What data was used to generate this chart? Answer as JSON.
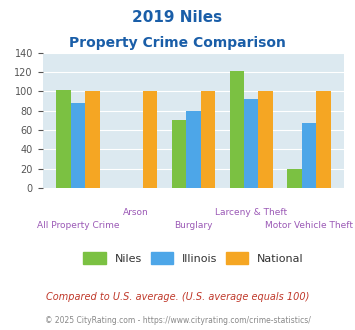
{
  "title_line1": "2019 Niles",
  "title_line2": "Property Crime Comparison",
  "categories": [
    "All Property Crime",
    "Arson",
    "Burglary",
    "Larceny & Theft",
    "Motor Vehicle Theft"
  ],
  "niles": [
    102,
    0,
    70,
    121,
    20
  ],
  "illinois": [
    88,
    0,
    80,
    92,
    67
  ],
  "national": [
    100,
    100,
    100,
    100,
    100
  ],
  "bar_color_niles": "#7bc142",
  "bar_color_illinois": "#4da6e8",
  "bar_color_national": "#f5a623",
  "ylim": [
    0,
    140
  ],
  "yticks": [
    0,
    20,
    40,
    60,
    80,
    100,
    120,
    140
  ],
  "bg_color": "#dce9f0",
  "legend_labels": [
    "Niles",
    "Illinois",
    "National"
  ],
  "note": "Compared to U.S. average. (U.S. average equals 100)",
  "footer": "© 2025 CityRating.com - https://www.cityrating.com/crime-statistics/",
  "title_color": "#1a5ea8",
  "note_color": "#c0392b",
  "footer_color": "#888888",
  "xlabel_color": "#9b59b6",
  "row1_labels": [
    [
      1,
      "Arson"
    ],
    [
      3,
      "Larceny & Theft"
    ]
  ],
  "row2_labels": [
    [
      0,
      "All Property Crime"
    ],
    [
      2,
      "Burglary"
    ],
    [
      4,
      "Motor Vehicle Theft"
    ]
  ]
}
